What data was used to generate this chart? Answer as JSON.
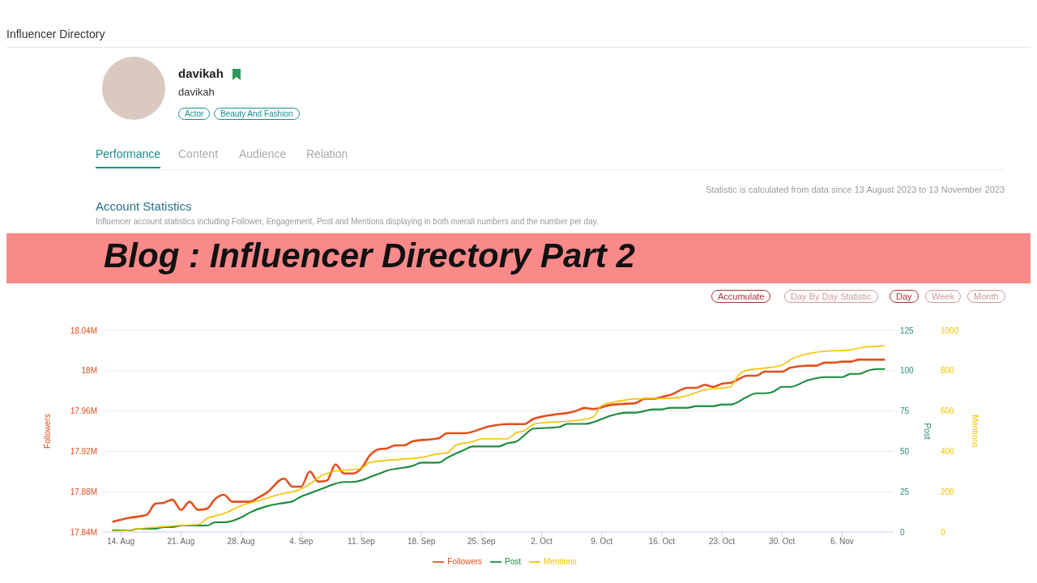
{
  "chart_data": {
    "type": "line",
    "title": "Account Statistics",
    "subtitle": "Influencer account statistics including Follower, Engagement, Post and Mentions displaying in both overall numbers and the number per day.",
    "annotations": [
      "Influencer Directory",
      "davikah",
      "davikah",
      "Actor",
      "Beauty And Fashion",
      "Performance",
      "Content",
      "Audience",
      "Relation",
      "Statistic is calculated from data since 13 August 2023 to 13 November 2023",
      "Blog : Influencer Directory Part 2",
      "Accumulate",
      "Day By Day Statistic",
      "Day",
      "Week",
      "Month"
    ],
    "ylabel": "Followers",
    "y2label": "Post",
    "y3label": "Mentions",
    "xlim": [
      "2023-08-12",
      "2023-11-12"
    ],
    "xticks": [
      {
        "value": "2023-08-14",
        "label": "14. Aug"
      },
      {
        "value": "2023-08-21",
        "label": "21. Aug"
      },
      {
        "value": "2023-08-28",
        "label": "28. Aug"
      },
      {
        "value": "2023-09-04",
        "label": "4. Sep"
      },
      {
        "value": "2023-09-11",
        "label": "11. Sep"
      },
      {
        "value": "2023-09-18",
        "label": "18. Sep"
      },
      {
        "value": "2023-09-25",
        "label": "25. Sep"
      },
      {
        "value": "2023-10-02",
        "label": "2. Oct"
      },
      {
        "value": "2023-10-09",
        "label": "9. Oct"
      },
      {
        "value": "2023-10-16",
        "label": "16. Oct"
      },
      {
        "value": "2023-10-23",
        "label": "23. Oct"
      },
      {
        "value": "2023-10-30",
        "label": "30. Oct"
      },
      {
        "value": "2023-11-06",
        "label": "6. Nov"
      }
    ],
    "ylim": [
      17840000,
      18040000
    ],
    "yticks": [
      {
        "value": 17840000,
        "label": "17.84M"
      },
      {
        "value": 17880000,
        "label": "17.88M"
      },
      {
        "value": 17920000,
        "label": "17.92M"
      },
      {
        "value": 17960000,
        "label": "17.96M"
      },
      {
        "value": 18000000,
        "label": "18M"
      },
      {
        "value": 18040000,
        "label": "18.04M"
      }
    ],
    "y2lim": [
      0,
      125
    ],
    "y2ticks": [
      0,
      25,
      50,
      75,
      100,
      125
    ],
    "y3lim": [
      0,
      1000
    ],
    "y3ticks": [
      0,
      200,
      400,
      600,
      800,
      1000
    ],
    "grid": "y",
    "legend": "bottom",
    "marker": "none",
    "series": [
      {
        "name": "Followers",
        "color": "#e2501f",
        "x": [
          "2023-08-13",
          "2023-08-15",
          "2023-08-17",
          "2023-08-18",
          "2023-08-19",
          "2023-08-20",
          "2023-08-21",
          "2023-08-22",
          "2023-08-23",
          "2023-08-24",
          "2023-08-25",
          "2023-08-26",
          "2023-08-27",
          "2023-08-29",
          "2023-08-30",
          "2023-08-31",
          "2023-09-02",
          "2023-09-03",
          "2023-09-04",
          "2023-09-05",
          "2023-09-06",
          "2023-09-07",
          "2023-09-08",
          "2023-09-09",
          "2023-09-10",
          "2023-09-11",
          "2023-09-12",
          "2023-09-13",
          "2023-09-14",
          "2023-09-15",
          "2023-09-16",
          "2023-09-17",
          "2023-09-20",
          "2023-09-21",
          "2023-09-23",
          "2023-09-26",
          "2023-09-28",
          "2023-09-30",
          "2023-10-01",
          "2023-10-04",
          "2023-10-05",
          "2023-10-06",
          "2023-10-07",
          "2023-10-08",
          "2023-10-10",
          "2023-10-13",
          "2023-10-14",
          "2023-10-15",
          "2023-10-16",
          "2023-10-17",
          "2023-10-19",
          "2023-10-20",
          "2023-10-21",
          "2023-10-22",
          "2023-10-23",
          "2023-10-24",
          "2023-10-26",
          "2023-10-27",
          "2023-10-28",
          "2023-10-30",
          "2023-10-31",
          "2023-11-02",
          "2023-11-03",
          "2023-11-04",
          "2023-11-05",
          "2023-11-06",
          "2023-11-07",
          "2023-11-08",
          "2023-11-11"
        ],
        "values": [
          17850000,
          17854000,
          17857000,
          17868000,
          17869000,
          17872000,
          17862000,
          17870000,
          17862000,
          17863000,
          17873000,
          17877000,
          17870000,
          17870000,
          17874000,
          17879000,
          17893000,
          17885000,
          17885000,
          17900000,
          17890000,
          17891000,
          17907000,
          17898000,
          17898000,
          17903000,
          17916000,
          17922000,
          17923000,
          17926000,
          17926000,
          17930000,
          17933000,
          17938000,
          17938000,
          17945000,
          17947000,
          17947000,
          17952000,
          17957000,
          17958000,
          17960000,
          17963000,
          17962000,
          17966000,
          17968000,
          17972000,
          17972000,
          17974000,
          17976000,
          17983000,
          17983000,
          17986000,
          17984000,
          17987000,
          17988000,
          17995000,
          17995000,
          17999000,
          17999000,
          18003000,
          18005000,
          18005000,
          18008000,
          18008000,
          18009000,
          18009000,
          18011000,
          18011000
        ]
      },
      {
        "name": "Post",
        "color": "#1b8a3e",
        "axis": "y2",
        "x": [
          "2023-08-13",
          "2023-08-15",
          "2023-08-16",
          "2023-08-18",
          "2023-08-19",
          "2023-08-20",
          "2023-08-21",
          "2023-08-24",
          "2023-08-25",
          "2023-08-26",
          "2023-08-28",
          "2023-08-29",
          "2023-08-31",
          "2023-09-02",
          "2023-09-03",
          "2023-09-04",
          "2023-09-05",
          "2023-09-07",
          "2023-09-08",
          "2023-09-09",
          "2023-09-10",
          "2023-09-11",
          "2023-09-12",
          "2023-09-13",
          "2023-09-14",
          "2023-09-17",
          "2023-09-18",
          "2023-09-20",
          "2023-09-21",
          "2023-09-23",
          "2023-09-24",
          "2023-09-27",
          "2023-09-28",
          "2023-09-29",
          "2023-09-30",
          "2023-10-01",
          "2023-10-04",
          "2023-10-05",
          "2023-10-07",
          "2023-10-09",
          "2023-10-10",
          "2023-10-12",
          "2023-10-13",
          "2023-10-15",
          "2023-10-16",
          "2023-10-17",
          "2023-10-19",
          "2023-10-20",
          "2023-10-22",
          "2023-10-23",
          "2023-10-24",
          "2023-10-26",
          "2023-10-27",
          "2023-10-28",
          "2023-10-29",
          "2023-10-30",
          "2023-10-31",
          "2023-11-02",
          "2023-11-04",
          "2023-11-06",
          "2023-11-07",
          "2023-11-08",
          "2023-11-09",
          "2023-11-10",
          "2023-11-11"
        ],
        "values": [
          1,
          1,
          2,
          2,
          3,
          3,
          4,
          4,
          6,
          6,
          9,
          12,
          16,
          18,
          19,
          22,
          24,
          28,
          30,
          31,
          31,
          32,
          34,
          36,
          38,
          41,
          43,
          43,
          46,
          51,
          53,
          53,
          55,
          56,
          60,
          64,
          65,
          67,
          67,
          70,
          72,
          74,
          74,
          76,
          76,
          77,
          77,
          78,
          78,
          79,
          79,
          84,
          86,
          86,
          87,
          90,
          90,
          94,
          96,
          96,
          98,
          98,
          100,
          101,
          101
        ]
      },
      {
        "name": "Mentions",
        "color": "#f2c200",
        "axis": "y3",
        "x": [
          "2023-08-13",
          "2023-08-15",
          "2023-08-16",
          "2023-08-18",
          "2023-08-21",
          "2023-08-23",
          "2023-08-24",
          "2023-08-26",
          "2023-08-28",
          "2023-08-30",
          "2023-09-02",
          "2023-09-03",
          "2023-09-05",
          "2023-09-06",
          "2023-09-08",
          "2023-09-10",
          "2023-09-11",
          "2023-09-12",
          "2023-09-16",
          "2023-09-18",
          "2023-09-20",
          "2023-09-21",
          "2023-09-22",
          "2023-09-24",
          "2023-09-25",
          "2023-09-28",
          "2023-09-29",
          "2023-09-30",
          "2023-10-01",
          "2023-10-02",
          "2023-10-05",
          "2023-10-07",
          "2023-10-08",
          "2023-10-09",
          "2023-10-11",
          "2023-10-13",
          "2023-10-16",
          "2023-10-18",
          "2023-10-20",
          "2023-10-21",
          "2023-10-23",
          "2023-10-24",
          "2023-10-25",
          "2023-10-26",
          "2023-10-28",
          "2023-10-30",
          "2023-10-31",
          "2023-11-02",
          "2023-11-04",
          "2023-11-07",
          "2023-11-08",
          "2023-11-10",
          "2023-11-11"
        ],
        "values": [
          4,
          9,
          16,
          23,
          33,
          37,
          66,
          91,
          130,
          155,
          192,
          199,
          237,
          269,
          302,
          309,
          315,
          345,
          362,
          370,
          388,
          392,
          430,
          448,
          462,
          462,
          492,
          502,
          533,
          541,
          549,
          559,
          570,
          627,
          649,
          660,
          662,
          667,
          692,
          705,
          714,
          721,
          781,
          803,
          813,
          827,
          855,
          884,
          896,
          903,
          913,
          921,
          924
        ]
      }
    ]
  }
}
